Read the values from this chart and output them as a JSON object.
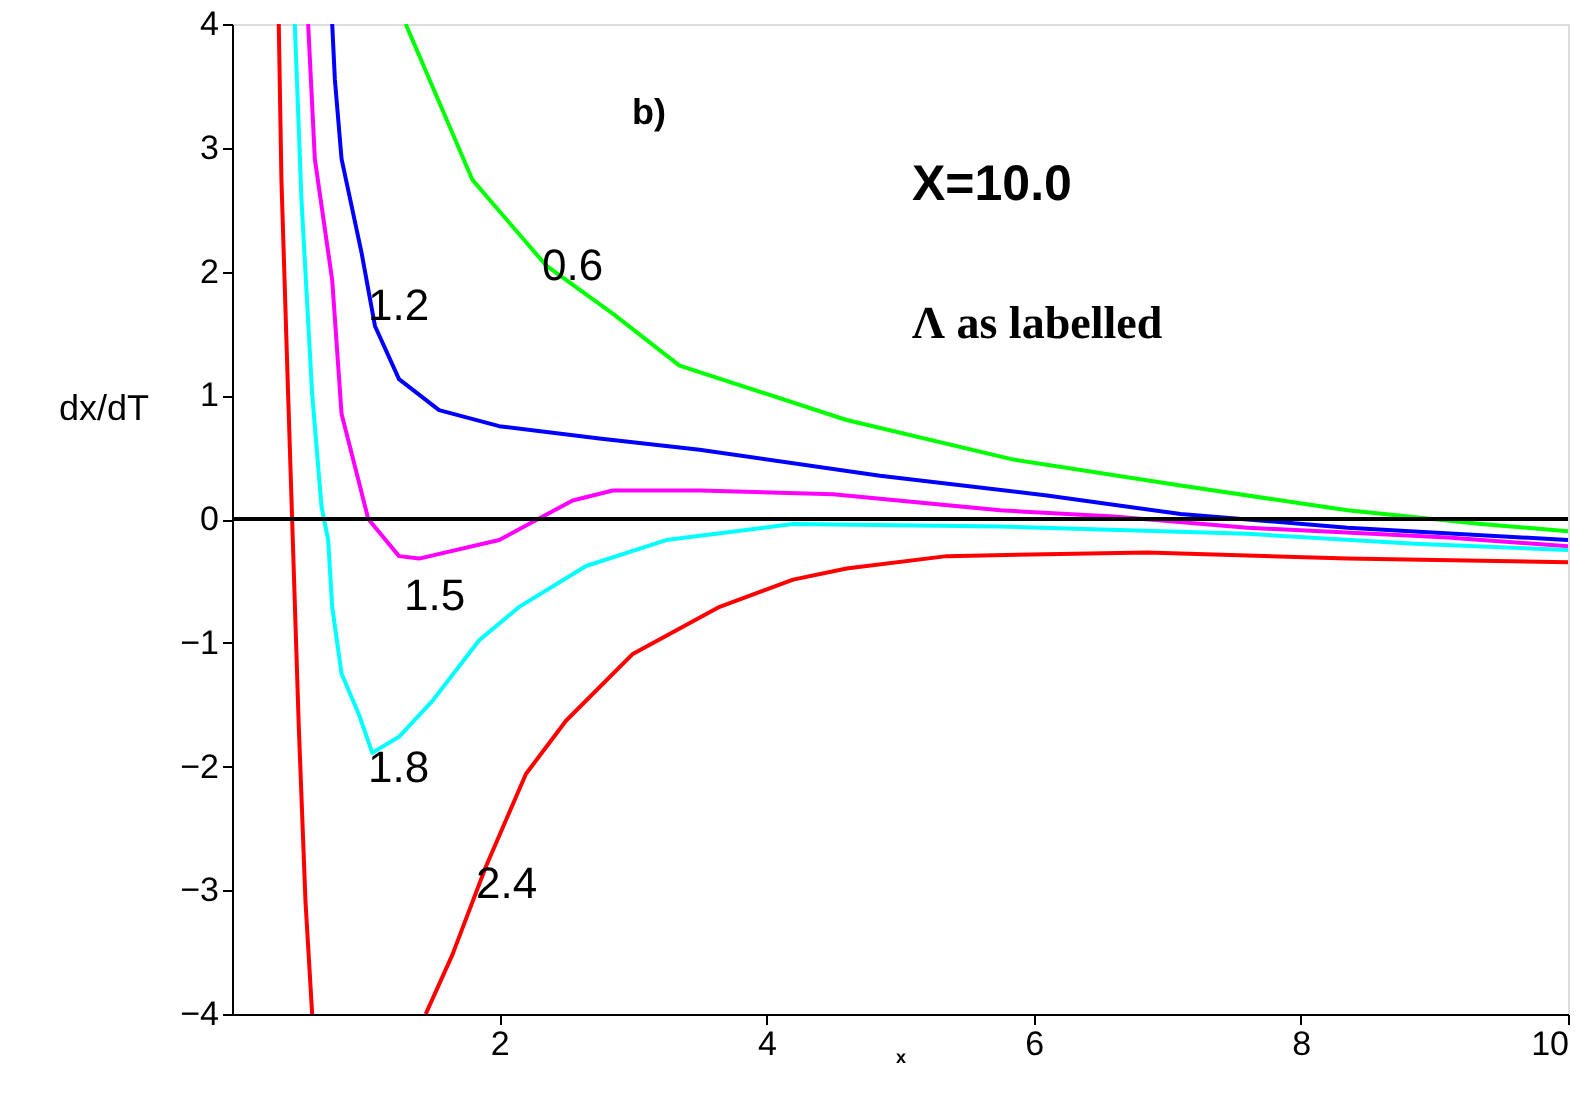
{
  "chart_data": {
    "type": "line",
    "xlabel": "x",
    "ylabel": "dx/dT",
    "xlim": [
      0,
      10
    ],
    "ylim": [
      -4,
      4
    ],
    "xticks": [
      2,
      4,
      6,
      8,
      10
    ],
    "yticks": [
      -4,
      -3,
      -2,
      -1,
      0,
      1,
      2,
      3,
      4
    ],
    "grid": false,
    "line_style": "solid",
    "marker": "none",
    "series": [
      {
        "name": "0.6",
        "color": "#00ff00",
        "x": [
          1.3,
          1.8,
          2.35,
          2.85,
          3.35,
          4.6,
          5.85,
          7.1,
          8.35,
          9.35,
          10
        ],
        "values": [
          4,
          2.74,
          2.05,
          1.66,
          1.24,
          0.8,
          0.48,
          0.27,
          0.07,
          -0.04,
          -0.1
        ]
      },
      {
        "name": "1.2",
        "color": "#0000ff",
        "x": [
          0.75,
          0.77,
          0.82,
          0.97,
          1.07,
          1.25,
          1.55,
          2.0,
          2.75,
          3.5,
          4.85,
          6.1,
          7.1,
          8.35,
          10
        ],
        "values": [
          4,
          3.55,
          2.91,
          2.15,
          1.56,
          1.13,
          0.88,
          0.75,
          0.65,
          0.56,
          0.35,
          0.19,
          0.04,
          -0.07,
          -0.17
        ]
      },
      {
        "name": "1.5",
        "color": "#ff00ff",
        "x": [
          0.57,
          0.62,
          0.75,
          0.82,
          1.02,
          1.25,
          1.4,
          2.0,
          2.55,
          2.85,
          3.5,
          4.5,
          5.75,
          6.6,
          7.6,
          9.1,
          10
        ],
        "values": [
          4,
          2.91,
          1.93,
          0.85,
          0,
          -0.3,
          -0.32,
          -0.17,
          0.15,
          0.23,
          0.23,
          0.2,
          0.07,
          0.02,
          -0.07,
          -0.15,
          -0.22
        ]
      },
      {
        "name": "1.8",
        "color": "#00ffff",
        "x": [
          0.47,
          0.52,
          0.6,
          0.67,
          0.72,
          0.75,
          0.82,
          0.95,
          1.05,
          1.25,
          1.5,
          1.85,
          2.15,
          2.65,
          3.25,
          4.2,
          5.75,
          7.6,
          8.85,
          10
        ],
        "values": [
          4,
          2.58,
          1.01,
          0.1,
          -0.17,
          -0.71,
          -1.25,
          -1.58,
          -1.89,
          -1.76,
          -1.47,
          -0.98,
          -0.71,
          -0.38,
          -0.17,
          -0.04,
          -0.06,
          -0.12,
          -0.2,
          -0.25
        ]
      },
      {
        "name": "2.4",
        "color": "#ff0000",
        "x": [
          0.35,
          0.37,
          0.42,
          0.45,
          0.5,
          0.55,
          0.6,
          1.0,
          1.45,
          1.65,
          1.9,
          2.2,
          2.5,
          3.0,
          3.65,
          4.2,
          4.6,
          5.35,
          6.85,
          8.35,
          10
        ],
        "values": [
          4,
          2.74,
          1.01,
          0,
          -1.68,
          -3.09,
          -4,
          null,
          -4,
          -3.52,
          -2.81,
          -2.06,
          -1.63,
          -1.09,
          -0.71,
          -0.49,
          -0.4,
          -0.3,
          -0.27,
          -0.32,
          -0.35
        ]
      }
    ],
    "ref_lines": [
      {
        "axis": "y",
        "value": 0,
        "color": "#000000"
      }
    ],
    "annotations": [
      "b)",
      "X=10.0",
      "Λ as labelled"
    ]
  }
}
